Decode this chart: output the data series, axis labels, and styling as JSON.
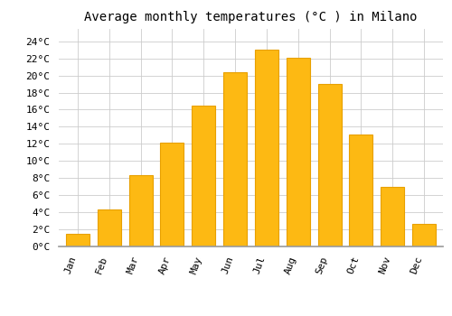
{
  "title": "Average monthly temperatures (°C ) in Milano",
  "months": [
    "Jan",
    "Feb",
    "Mar",
    "Apr",
    "May",
    "Jun",
    "Jul",
    "Aug",
    "Sep",
    "Oct",
    "Nov",
    "Dec"
  ],
  "values": [
    1.5,
    4.3,
    8.3,
    12.1,
    16.5,
    20.4,
    23.0,
    22.1,
    19.0,
    13.1,
    7.0,
    2.6
  ],
  "bar_color": "#FDB913",
  "bar_edge_color": "#E8A000",
  "background_color": "#FFFFFF",
  "grid_color": "#CCCCCC",
  "ytick_labels": [
    "0°C",
    "2°C",
    "4°C",
    "6°C",
    "8°C",
    "10°C",
    "12°C",
    "14°C",
    "16°C",
    "18°C",
    "20°C",
    "22°C",
    "24°C"
  ],
  "ytick_values": [
    0,
    2,
    4,
    6,
    8,
    10,
    12,
    14,
    16,
    18,
    20,
    22,
    24
  ],
  "ylim": [
    0,
    25.5
  ],
  "title_fontsize": 10,
  "tick_fontsize": 8,
  "font_family": "monospace",
  "bar_width": 0.75
}
